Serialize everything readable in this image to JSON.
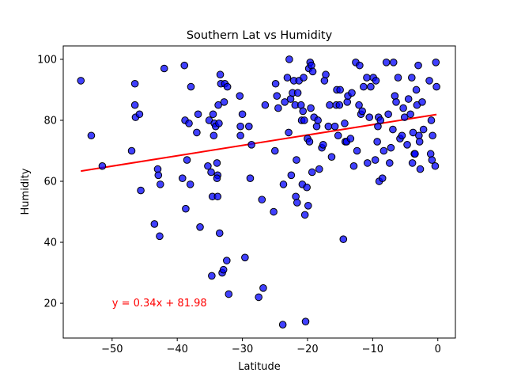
{
  "chart_data": {
    "type": "scatter",
    "title": "Southern Lat vs Humidity",
    "xlabel": "Latitude",
    "ylabel": "Humidity",
    "xlim": [
      -57.5,
      2.7
    ],
    "ylim": [
      8.6,
      104.4
    ],
    "xticks": [
      -50,
      -40,
      -30,
      -20,
      -10,
      0
    ],
    "xtick_labels": [
      "−50",
      "−40",
      "−30",
      "−20",
      "−10",
      "0"
    ],
    "yticks": [
      20,
      40,
      60,
      80,
      100
    ],
    "ytick_labels": [
      "20",
      "40",
      "60",
      "80",
      "100"
    ],
    "grid": false,
    "series": [
      {
        "name": "cities",
        "color": "#0000ff",
        "edge_color": "#000000",
        "opacity": 0.75,
        "points": [
          [
            -54.8,
            93
          ],
          [
            -53.2,
            75
          ],
          [
            -51.5,
            65
          ],
          [
            -47.0,
            70
          ],
          [
            -46.5,
            85
          ],
          [
            -46.5,
            92
          ],
          [
            -46.4,
            81
          ],
          [
            -45.8,
            82
          ],
          [
            -45.6,
            57
          ],
          [
            -43.5,
            46
          ],
          [
            -43.0,
            64
          ],
          [
            -42.9,
            62
          ],
          [
            -42.7,
            42
          ],
          [
            -42.6,
            59
          ],
          [
            -42.0,
            97
          ],
          [
            -39.2,
            61
          ],
          [
            -38.9,
            98
          ],
          [
            -38.8,
            80
          ],
          [
            -38.7,
            51
          ],
          [
            -38.5,
            67
          ],
          [
            -38.2,
            79
          ],
          [
            -38.0,
            59
          ],
          [
            -37.9,
            91
          ],
          [
            -37.0,
            76
          ],
          [
            -36.8,
            82
          ],
          [
            -36.5,
            45
          ],
          [
            -35.3,
            65
          ],
          [
            -35.1,
            80
          ],
          [
            -34.8,
            63
          ],
          [
            -34.7,
            29
          ],
          [
            -34.6,
            55
          ],
          [
            -34.5,
            82
          ],
          [
            -34.4,
            75
          ],
          [
            -34.3,
            79
          ],
          [
            -34.1,
            78
          ],
          [
            -33.9,
            66
          ],
          [
            -33.8,
            62
          ],
          [
            -33.9,
            61
          ],
          [
            -33.8,
            55
          ],
          [
            -33.7,
            85
          ],
          [
            -33.6,
            79
          ],
          [
            -33.5,
            43
          ],
          [
            -33.4,
            95
          ],
          [
            -33.3,
            92
          ],
          [
            -33.1,
            30
          ],
          [
            -32.9,
            31
          ],
          [
            -32.8,
            86
          ],
          [
            -32.7,
            92
          ],
          [
            -32.4,
            34
          ],
          [
            -32.3,
            91
          ],
          [
            -32.1,
            23
          ],
          [
            -30.4,
            88
          ],
          [
            -30.3,
            78
          ],
          [
            -30.3,
            75
          ],
          [
            -30.0,
            82
          ],
          [
            -29.6,
            35
          ],
          [
            -29.0,
            78
          ],
          [
            -28.8,
            61
          ],
          [
            -28.6,
            72
          ],
          [
            -27.5,
            22
          ],
          [
            -27.0,
            54
          ],
          [
            -26.8,
            25
          ],
          [
            -26.5,
            85
          ],
          [
            -25.2,
            50
          ],
          [
            -25.0,
            70
          ],
          [
            -24.9,
            92
          ],
          [
            -24.7,
            88
          ],
          [
            -24.5,
            84
          ],
          [
            -23.8,
            13
          ],
          [
            -23.7,
            59
          ],
          [
            -23.5,
            86
          ],
          [
            -23.1,
            94
          ],
          [
            -22.9,
            76
          ],
          [
            -22.8,
            100
          ],
          [
            -22.6,
            87
          ],
          [
            -22.5,
            62
          ],
          [
            -22.3,
            89
          ],
          [
            -22.1,
            93
          ],
          [
            -21.9,
            85
          ],
          [
            -21.8,
            55
          ],
          [
            -21.7,
            67
          ],
          [
            -21.6,
            53
          ],
          [
            -21.5,
            89
          ],
          [
            -21.3,
            93
          ],
          [
            -21.0,
            85
          ],
          [
            -20.9,
            80
          ],
          [
            -20.8,
            59
          ],
          [
            -20.7,
            83
          ],
          [
            -20.6,
            94
          ],
          [
            -20.5,
            80
          ],
          [
            -20.4,
            49
          ],
          [
            -20.3,
            14
          ],
          [
            -20.1,
            58
          ],
          [
            -20.0,
            74
          ],
          [
            -19.9,
            52
          ],
          [
            -19.8,
            97
          ],
          [
            -19.7,
            73
          ],
          [
            -19.6,
            99
          ],
          [
            -19.5,
            84
          ],
          [
            -19.4,
            98
          ],
          [
            -19.3,
            63
          ],
          [
            -19.2,
            96
          ],
          [
            -19.0,
            81
          ],
          [
            -18.6,
            78
          ],
          [
            -18.4,
            80
          ],
          [
            -18.2,
            64
          ],
          [
            -17.8,
            71
          ],
          [
            -17.6,
            72
          ],
          [
            -17.4,
            93
          ],
          [
            -17.2,
            95
          ],
          [
            -16.8,
            78
          ],
          [
            -16.6,
            85
          ],
          [
            -16.3,
            68
          ],
          [
            -15.8,
            78
          ],
          [
            -15.6,
            85
          ],
          [
            -15.5,
            90
          ],
          [
            -15.3,
            75
          ],
          [
            -15.1,
            85
          ],
          [
            -15.0,
            90
          ],
          [
            -14.5,
            41
          ],
          [
            -14.3,
            79
          ],
          [
            -14.2,
            73
          ],
          [
            -14.0,
            73
          ],
          [
            -13.9,
            86
          ],
          [
            -13.8,
            88
          ],
          [
            -13.4,
            74
          ],
          [
            -13.2,
            89
          ],
          [
            -12.9,
            65
          ],
          [
            -12.6,
            99
          ],
          [
            -12.4,
            70
          ],
          [
            -12.1,
            85
          ],
          [
            -12.0,
            98
          ],
          [
            -11.8,
            82
          ],
          [
            -11.6,
            83
          ],
          [
            -11.4,
            91
          ],
          [
            -10.9,
            94
          ],
          [
            -10.8,
            66
          ],
          [
            -10.5,
            81
          ],
          [
            -10.3,
            91
          ],
          [
            -9.9,
            94
          ],
          [
            -9.6,
            67
          ],
          [
            -9.5,
            93
          ],
          [
            -9.3,
            73
          ],
          [
            -9.2,
            78
          ],
          [
            -9.1,
            81
          ],
          [
            -9.0,
            60
          ],
          [
            -8.8,
            80
          ],
          [
            -8.5,
            61
          ],
          [
            -8.3,
            70
          ],
          [
            -7.9,
            99
          ],
          [
            -7.6,
            82
          ],
          [
            -7.4,
            66
          ],
          [
            -7.2,
            71
          ],
          [
            -6.9,
            77
          ],
          [
            -6.8,
            99
          ],
          [
            -6.6,
            88
          ],
          [
            -6.4,
            86
          ],
          [
            -6.1,
            94
          ],
          [
            -5.8,
            74
          ],
          [
            -5.5,
            75
          ],
          [
            -5.3,
            84
          ],
          [
            -5.1,
            81
          ],
          [
            -4.7,
            72
          ],
          [
            -4.5,
            87
          ],
          [
            -4.2,
            82
          ],
          [
            -4.0,
            94
          ],
          [
            -3.9,
            66
          ],
          [
            -3.8,
            76
          ],
          [
            -3.6,
            69
          ],
          [
            -3.5,
            69
          ],
          [
            -3.3,
            90
          ],
          [
            -3.2,
            85
          ],
          [
            -3.0,
            98
          ],
          [
            -2.9,
            75
          ],
          [
            -2.8,
            73
          ],
          [
            -2.7,
            64
          ],
          [
            -2.4,
            86
          ],
          [
            -2.2,
            77
          ],
          [
            -1.3,
            93
          ],
          [
            -1.1,
            69
          ],
          [
            -1.0,
            80
          ],
          [
            -0.9,
            67
          ],
          [
            -0.8,
            75
          ],
          [
            -0.4,
            65
          ],
          [
            -0.3,
            99
          ],
          [
            -0.2,
            91
          ]
        ]
      }
    ],
    "regression": {
      "slope": 0.34,
      "intercept": 81.98,
      "x_range": [
        -54.8,
        -0.2
      ],
      "color": "#ff0000",
      "equation_label": "y = 0.34x + 81.98",
      "label_position": [
        -50,
        20
      ]
    }
  }
}
